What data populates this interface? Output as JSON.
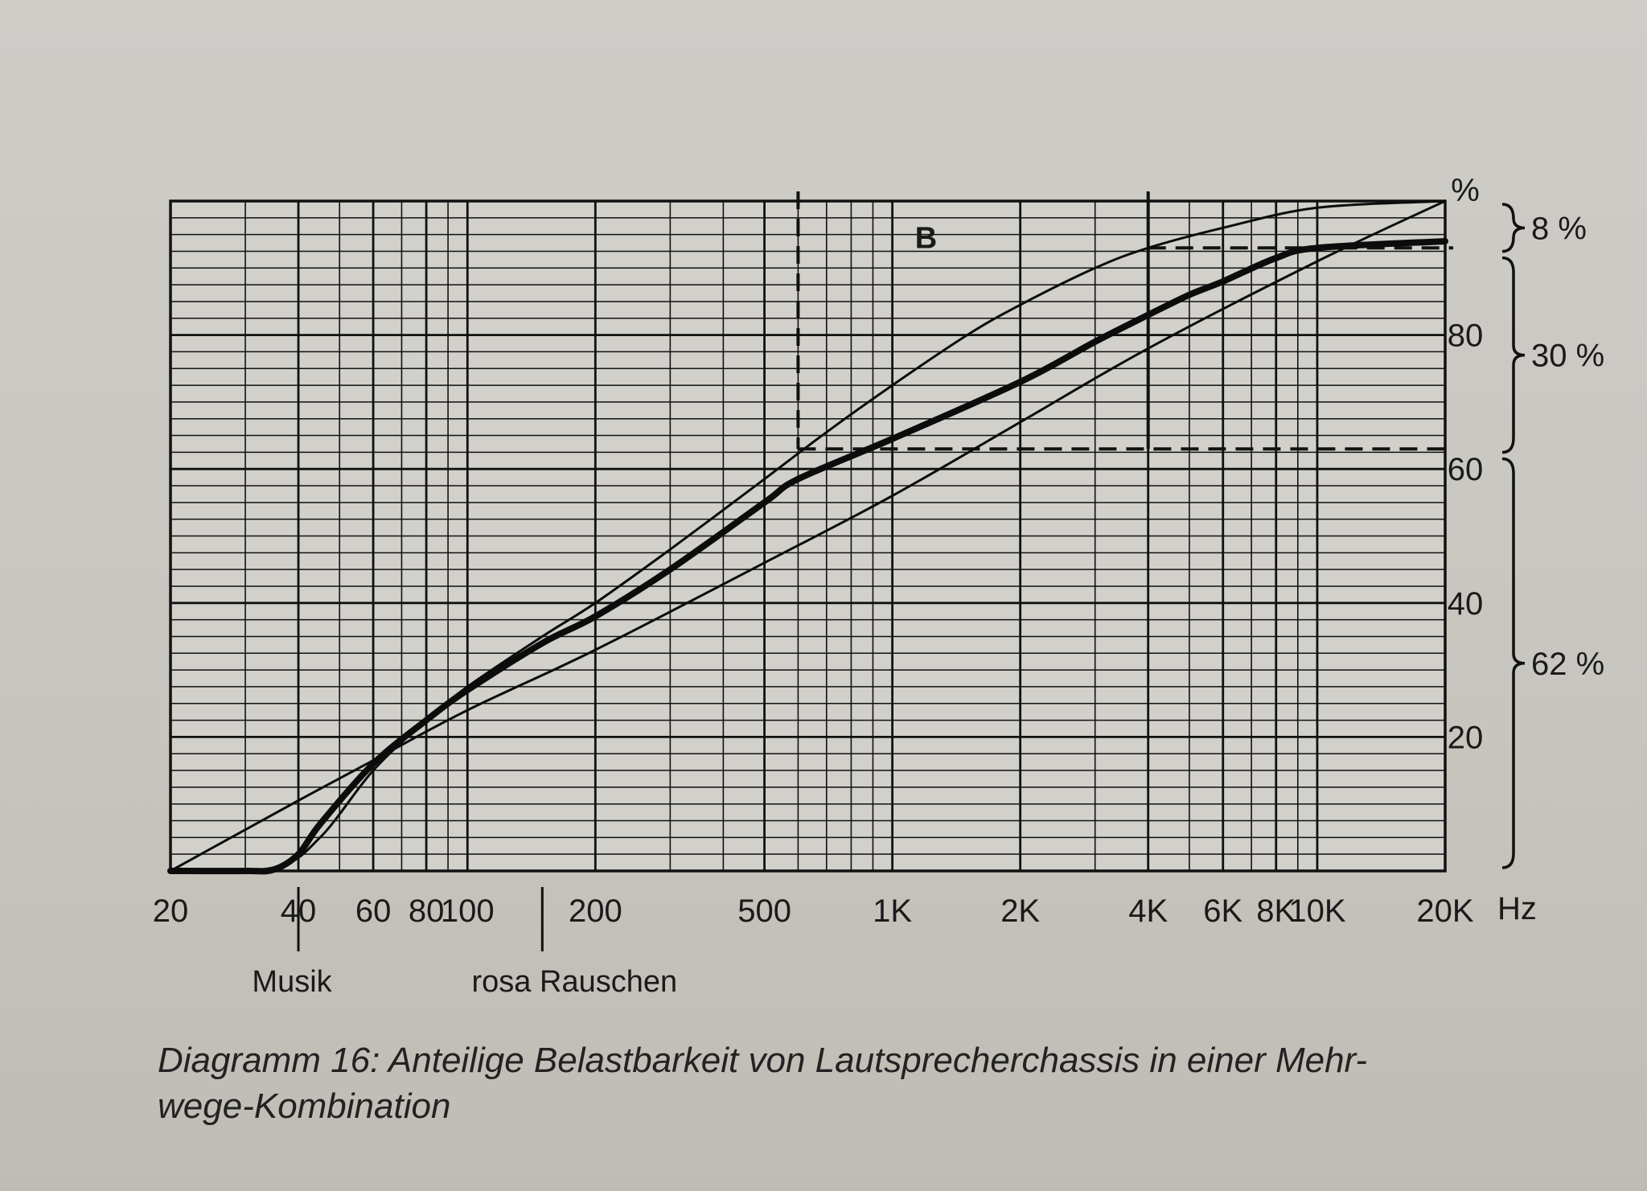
{
  "chart_data": {
    "type": "line",
    "xscale": "log",
    "xlim": [
      20,
      20000
    ],
    "ylim": [
      0,
      100
    ],
    "grid": true,
    "x_ticks": [
      {
        "value": 20,
        "label": "20"
      },
      {
        "value": 40,
        "label": "40"
      },
      {
        "value": 60,
        "label": "60"
      },
      {
        "value": 80,
        "label": "80"
      },
      {
        "value": 100,
        "label": "100"
      },
      {
        "value": 200,
        "label": "200"
      },
      {
        "value": 500,
        "label": "500"
      },
      {
        "value": 1000,
        "label": "1K"
      },
      {
        "value": 2000,
        "label": "2K"
      },
      {
        "value": 4000,
        "label": "4K"
      },
      {
        "value": 6000,
        "label": "6K"
      },
      {
        "value": 8000,
        "label": "8K"
      },
      {
        "value": 10000,
        "label": "10K"
      },
      {
        "value": 20000,
        "label": "20K"
      }
    ],
    "x_unit": "Hz",
    "y_ticks": [
      {
        "value": 20,
        "label": "20"
      },
      {
        "value": 40,
        "label": "40"
      },
      {
        "value": 60,
        "label": "60"
      },
      {
        "value": 80,
        "label": "80"
      },
      {
        "value": 100,
        "label": "%"
      }
    ],
    "series": [
      {
        "label": "",
        "style": "thin",
        "x": [
          20,
          40,
          60,
          100,
          200,
          500,
          1000,
          2000,
          4000,
          10000,
          20000
        ],
        "y": [
          0,
          10.5,
          16.5,
          24,
          33,
          46,
          56,
          67,
          78,
          91,
          100
        ]
      },
      {
        "label": "B",
        "style": "thin",
        "x": [
          20,
          35,
          45,
          60,
          80,
          100,
          150,
          200,
          300,
          500,
          700,
          1000,
          1500,
          2000,
          3000,
          4000,
          6000,
          10000,
          20000
        ],
        "y": [
          0,
          0.5,
          5,
          15,
          22.5,
          27.5,
          35,
          40,
          48,
          58.5,
          65.5,
          72.5,
          80,
          84.5,
          90,
          93,
          96,
          99,
          100
        ]
      },
      {
        "label": "",
        "style": "bold",
        "x": [
          20,
          30,
          35,
          40,
          45,
          60,
          80,
          100,
          150,
          200,
          300,
          500,
          600,
          1000,
          2000,
          3000,
          4000,
          5000,
          6000,
          8000,
          10000,
          20000
        ],
        "y": [
          0,
          0,
          0.2,
          2.5,
          7,
          16,
          22.5,
          27,
          34,
          38,
          45,
          55,
          58.5,
          64.5,
          73,
          79,
          83,
          86,
          88,
          91.5,
          93,
          94
        ]
      }
    ],
    "reference_lines": [
      {
        "orientation": "vertical",
        "x": 600,
        "style": "dashed"
      },
      {
        "orientation": "horizontal",
        "y": 63,
        "style": "dashed"
      },
      {
        "orientation": "vertical",
        "x": 4000,
        "style": "solid"
      },
      {
        "orientation": "horizontal",
        "y": 93,
        "style": "dashed"
      }
    ],
    "right_brackets": [
      {
        "label": "8 %",
        "from": 92,
        "to": 100
      },
      {
        "label": "30 %",
        "from": 62,
        "to": 92
      },
      {
        "label": "62 %",
        "from": 0,
        "to": 62
      }
    ],
    "annotations": [
      {
        "label": "Musik",
        "x": 40
      },
      {
        "label": "rosa Rauschen",
        "x": 150
      }
    ]
  },
  "caption": {
    "line1": "Diagramm 16:  Anteilige Belastbarkeit von Lautsprecherchassis in einer Mehr-",
    "line2": "wege-Kombination"
  }
}
